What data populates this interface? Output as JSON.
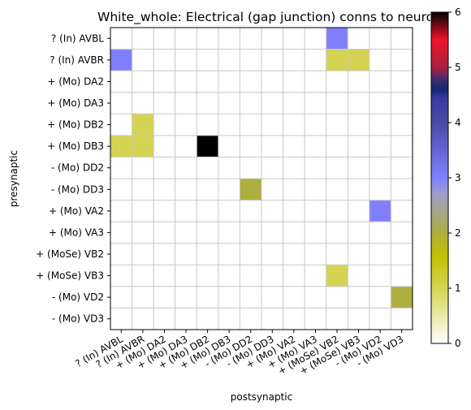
{
  "chart_data": {
    "type": "heatmap",
    "title": "White_whole: Electrical (gap junction) conns to neuro",
    "xlabel": "postsynaptic",
    "ylabel": "presynaptic",
    "rows": [
      "? (In) AVBL",
      "? (In) AVBR",
      "+ (Mo) DA2",
      "+ (Mo) DA3",
      "+ (Mo) DB2",
      "+ (Mo) DB3",
      "- (Mo) DD2",
      "- (Mo) DD3",
      "+ (Mo) VA2",
      "+ (Mo) VA3",
      "+ (MoSe) VB2",
      "+ (MoSe) VB3",
      "- (Mo) VD2",
      "- (Mo) VD3"
    ],
    "columns": [
      "? (In) AVBL",
      "? (In) AVBR",
      "+ (Mo) DA2",
      "+ (Mo) DA3",
      "+ (Mo) DB2",
      "+ (Mo) DB3",
      "- (Mo) DD2",
      "- (Mo) DD3",
      "+ (Mo) VA2",
      "+ (Mo) VA3",
      "+ (MoSe) VB2",
      "+ (MoSe) VB3",
      "- (Mo) VD2",
      "- (Mo) VD3"
    ],
    "values": [
      [
        0,
        0,
        0,
        0,
        0,
        0,
        0,
        0,
        0,
        0,
        3,
        0,
        0,
        0
      ],
      [
        3,
        0,
        0,
        0,
        0,
        0,
        0,
        0,
        0,
        0,
        1,
        1,
        0,
        0
      ],
      [
        0,
        0,
        0,
        0,
        0,
        0,
        0,
        0,
        0,
        0,
        0,
        0,
        0,
        0
      ],
      [
        0,
        0,
        0,
        0,
        0,
        0,
        0,
        0,
        0,
        0,
        0,
        0,
        0,
        0
      ],
      [
        0,
        1,
        0,
        0,
        0,
        0,
        0,
        0,
        0,
        0,
        0,
        0,
        0,
        0
      ],
      [
        1,
        1,
        0,
        0,
        6,
        0,
        0,
        0,
        0,
        0,
        0,
        0,
        0,
        0
      ],
      [
        0,
        0,
        0,
        0,
        0,
        0,
        0,
        0,
        0,
        0,
        0,
        0,
        0,
        0
      ],
      [
        0,
        0,
        0,
        0,
        0,
        0,
        2,
        0,
        0,
        0,
        0,
        0,
        0,
        0
      ],
      [
        0,
        0,
        0,
        0,
        0,
        0,
        0,
        0,
        0,
        0,
        0,
        0,
        3,
        0
      ],
      [
        0,
        0,
        0,
        0,
        0,
        0,
        0,
        0,
        0,
        0,
        0,
        0,
        0,
        0
      ],
      [
        0,
        0,
        0,
        0,
        0,
        0,
        0,
        0,
        0,
        0,
        0,
        0,
        0,
        0
      ],
      [
        0,
        0,
        0,
        0,
        0,
        0,
        0,
        0,
        0,
        0,
        1,
        0,
        0,
        0
      ],
      [
        0,
        0,
        0,
        0,
        0,
        0,
        0,
        0,
        0,
        0,
        0,
        0,
        0,
        2
      ],
      [
        0,
        0,
        0,
        0,
        0,
        0,
        0,
        0,
        0,
        0,
        0,
        0,
        0,
        0
      ]
    ],
    "colorbar": {
      "range": [
        0,
        6
      ],
      "ticks": [
        "0",
        "1",
        "2",
        "3",
        "4",
        "5",
        "6"
      ],
      "colormap": "gist_stern_r",
      "stops": [
        {
          "v": 0,
          "color": "#ffffff"
        },
        {
          "v": 1,
          "color": "#d4d452"
        },
        {
          "v": 1.6,
          "color": "#c2bf00"
        },
        {
          "v": 2,
          "color": "#aeae3e"
        },
        {
          "v": 2.7,
          "color": "#9e9ec8"
        },
        {
          "v": 3,
          "color": "#8080ff"
        },
        {
          "v": 4,
          "color": "#4a4aa8"
        },
        {
          "v": 4.45,
          "color": "#3838a0"
        },
        {
          "v": 4.6,
          "color": "#102870"
        },
        {
          "v": 4.8,
          "color": "#4a2a70"
        },
        {
          "v": 5,
          "color": "#a82040"
        },
        {
          "v": 5.5,
          "color": "#f0142a"
        },
        {
          "v": 6,
          "color": "#000000"
        }
      ]
    },
    "grid": true
  }
}
